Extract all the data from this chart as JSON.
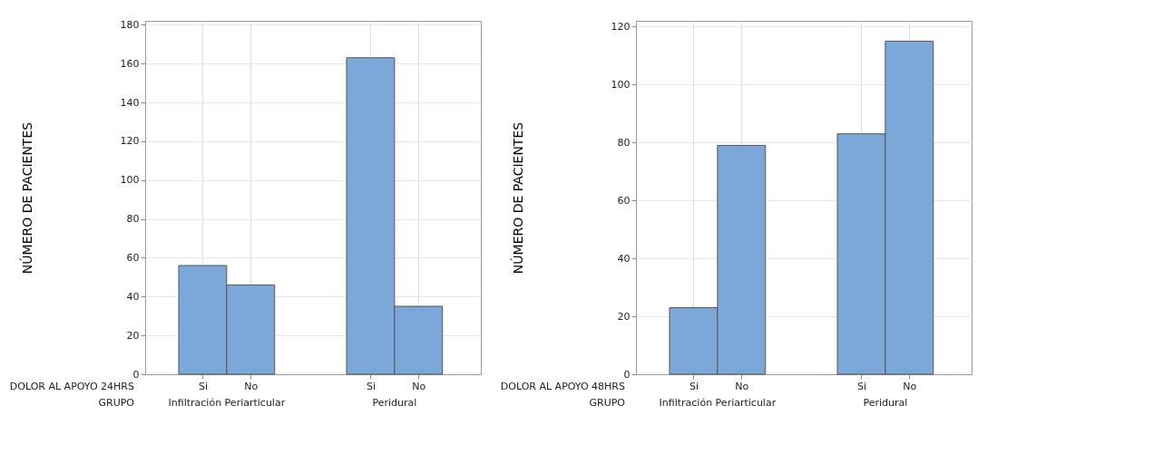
{
  "chart_data": [
    {
      "type": "bar",
      "ylabel": "NÚMERO DE PACIENTES",
      "categories": [
        "Si",
        "No",
        "Si",
        "No"
      ],
      "series": [
        {
          "color": "#7ba7d9",
          "values": [
            56,
            46,
            163,
            35
          ]
        }
      ],
      "ylim": [
        0,
        182
      ],
      "yticks": [
        0,
        20,
        40,
        60,
        80,
        100,
        120,
        140,
        160,
        180
      ],
      "grid": true,
      "annotations": [
        "DOLOR AL APOYO 24HRS",
        "GRUPO",
        "Infiltración Periarticular",
        "Peridural"
      ]
    },
    {
      "type": "bar",
      "ylabel": "NÚMERO DE PACIENTES",
      "categories": [
        "Si",
        "No",
        "Si",
        "No"
      ],
      "series": [
        {
          "color": "#7ba7d9",
          "values": [
            23,
            79,
            83,
            115
          ]
        }
      ],
      "ylim": [
        0,
        122
      ],
      "yticks": [
        0,
        20,
        40,
        60,
        80,
        100,
        120
      ],
      "grid": true,
      "annotations": [
        "DOLOR AL APOYO 48HRS",
        "GRUPO",
        "Infiltración Periarticular",
        "Peridural"
      ]
    }
  ]
}
